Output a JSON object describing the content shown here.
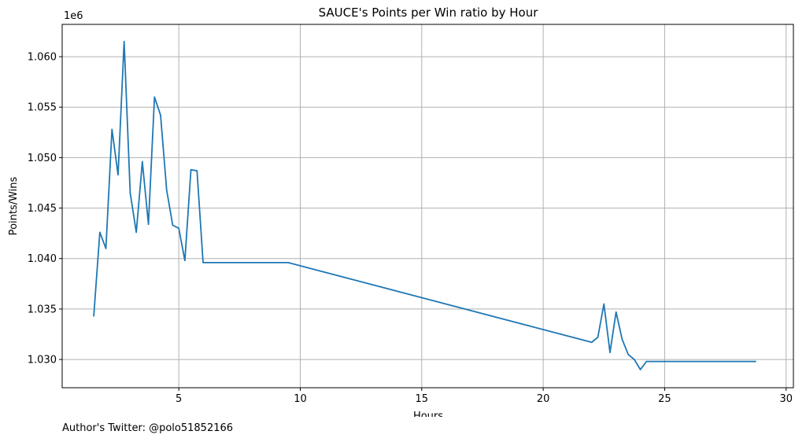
{
  "chart_data": {
    "type": "line",
    "title": "SAUCE's Points per Win ratio by Hour",
    "xlabel": "Hours",
    "ylabel": "Points/Wins",
    "y_offset_label": "1e6",
    "xlim": [
      0.2,
      30.3
    ],
    "ylim": [
      1.0272,
      1.0632
    ],
    "x_ticks": [
      5,
      10,
      15,
      20,
      25,
      30
    ],
    "y_ticks": [
      1.03,
      1.035,
      1.04,
      1.045,
      1.05,
      1.055,
      1.06
    ],
    "grid": true,
    "line_color": "#1f77b4",
    "series": [
      {
        "x": [
          1.5,
          1.75,
          2.0,
          2.25,
          2.5,
          2.75,
          3.0,
          3.25,
          3.5,
          3.75,
          4.0,
          4.25,
          4.5,
          4.75,
          5.0,
          5.25,
          5.5,
          5.75,
          6.0,
          9.5,
          22.0,
          22.25,
          22.5,
          22.75,
          23.0,
          23.25,
          23.5,
          23.75,
          24.0,
          24.25,
          28.75
        ],
        "y": [
          1.0343,
          1.0426,
          1.041,
          1.0528,
          1.0483,
          1.0615,
          1.0465,
          1.0426,
          1.0496,
          1.0434,
          1.056,
          1.0542,
          1.0468,
          1.0433,
          1.043,
          1.0398,
          1.0488,
          1.0487,
          1.0396,
          1.0396,
          1.0317,
          1.0322,
          1.0355,
          1.0307,
          1.0347,
          1.032,
          1.0305,
          1.03,
          1.029,
          1.0298,
          1.0298
        ]
      }
    ]
  },
  "footer": {
    "author_text": "Author's Twitter: @polo51852166"
  }
}
